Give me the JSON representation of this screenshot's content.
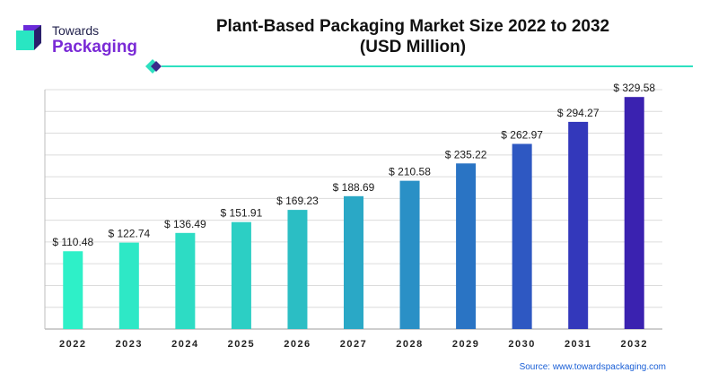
{
  "brand": {
    "line1": "Towards",
    "line2": "Packaging",
    "text_color": "#1f1f4a",
    "accent_color": "#7a2ad6",
    "mark_colors": [
      "#29e6c2",
      "#6a2bd9",
      "#2a1f6b"
    ]
  },
  "title": {
    "line1": "Plant-Based Packaging Market Size 2022 to 2032",
    "line2": "(USD Million)"
  },
  "source": "Source: www.towardspackaging.com",
  "chart_data": {
    "type": "bar",
    "title": "Plant-Based Packaging Market Size 2022 to 2032 (USD Million)",
    "categories": [
      "2022",
      "2023",
      "2024",
      "2025",
      "2026",
      "2027",
      "2028",
      "2029",
      "2030",
      "2031",
      "2032"
    ],
    "values": [
      110.48,
      122.74,
      136.49,
      151.91,
      169.23,
      188.69,
      210.58,
      235.22,
      262.97,
      294.27,
      329.58
    ],
    "value_labels": [
      "$ 110.48",
      "$ 122.74",
      "$ 136.49",
      "$ 151.91",
      "$ 169.23",
      "$ 188.69",
      "$ 210.58",
      "$ 235.22",
      "$ 262.97",
      "$ 294.27",
      "$ 329.58"
    ],
    "bar_colors": [
      "#2ef0c8",
      "#2ee8c6",
      "#2ddcc4",
      "#2ccfc4",
      "#2bbec4",
      "#2aa8c6",
      "#2a90c6",
      "#2a74c4",
      "#2e58c2",
      "#3338bb",
      "#3a22b0"
    ],
    "xlabel": "",
    "ylabel": "",
    "ylim": [
      0,
      340
    ],
    "grid": true
  }
}
